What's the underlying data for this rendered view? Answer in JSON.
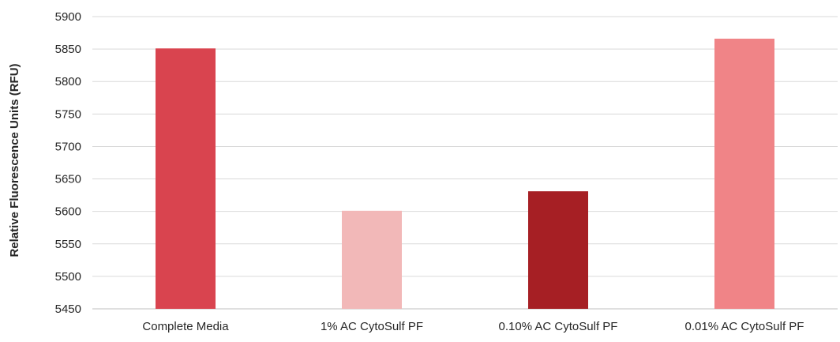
{
  "chart_data": {
    "type": "bar",
    "title": "",
    "xlabel": "",
    "ylabel": "Relative Fluorescence Units (RFU)",
    "categories": [
      "Complete Media",
      "1% AC CytoSulf PF",
      "0.10% AC CytoSulf PF",
      "0.01% AC CytoSulf PF"
    ],
    "values": [
      5851,
      5601,
      5631,
      5866
    ],
    "bar_colors": [
      "#d9444f",
      "#f2b8b8",
      "#a61f24",
      "#f08487"
    ],
    "ylim": [
      5450,
      5900
    ],
    "yticks": [
      5450,
      5500,
      5550,
      5600,
      5650,
      5700,
      5750,
      5800,
      5850,
      5900
    ],
    "grid": true,
    "legend": "none"
  }
}
